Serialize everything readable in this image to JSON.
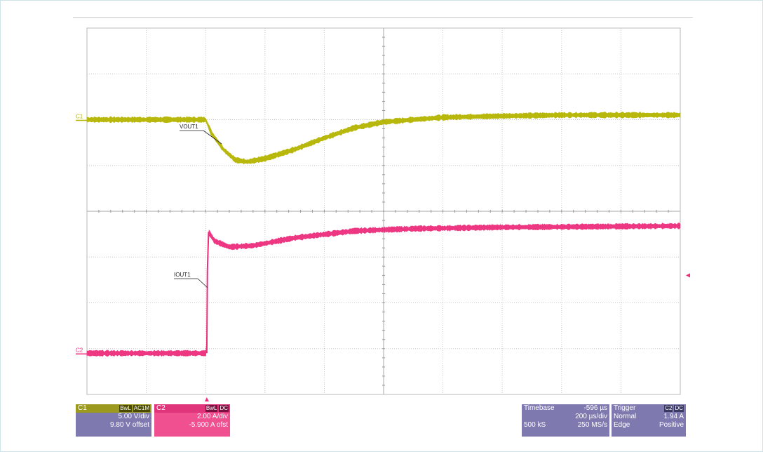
{
  "chart_data": {
    "type": "line",
    "title": "",
    "xlabel": "",
    "ylabel": "",
    "grid": true,
    "x_divisions": 10,
    "y_divisions": 8,
    "series": [
      {
        "name": "VOUT1",
        "channel": "C1",
        "color": "#b5b500",
        "points_div": [
          [
            0,
            6.0
          ],
          [
            2.0,
            6.0
          ],
          [
            2.1,
            5.7
          ],
          [
            2.3,
            5.35
          ],
          [
            2.5,
            5.12
          ],
          [
            2.7,
            5.08
          ],
          [
            3.0,
            5.15
          ],
          [
            3.5,
            5.35
          ],
          [
            4.0,
            5.6
          ],
          [
            4.5,
            5.82
          ],
          [
            5.0,
            5.95
          ],
          [
            6.0,
            6.05
          ],
          [
            7.0,
            6.08
          ],
          [
            8.0,
            6.1
          ],
          [
            10.0,
            6.1
          ]
        ]
      },
      {
        "name": "IOUT1",
        "channel": "C2",
        "color": "#ee2d7c",
        "points_div": [
          [
            0,
            0.9
          ],
          [
            2.02,
            0.9
          ],
          [
            2.03,
            2.7
          ],
          [
            2.05,
            3.55
          ],
          [
            2.15,
            3.35
          ],
          [
            2.4,
            3.22
          ],
          [
            2.8,
            3.25
          ],
          [
            3.5,
            3.42
          ],
          [
            4.5,
            3.57
          ],
          [
            5.5,
            3.62
          ],
          [
            7.0,
            3.65
          ],
          [
            10.0,
            3.68
          ]
        ]
      }
    ],
    "trace_labels": [
      "VOUT1",
      "IOUT1"
    ],
    "channel_markers": [
      "C1",
      "C2"
    ]
  },
  "panels": {
    "c1": {
      "name": "C1",
      "badge1": "BwL",
      "badge2": "AC1M",
      "vdiv": "5.00 V/div",
      "offset": "9.80 V offset"
    },
    "c2": {
      "name": "C2",
      "badge1": "BwL",
      "badge2": "DC",
      "adiv": "2.00 A/div",
      "offset": "-5.900 A ofst"
    },
    "timebase": {
      "label": "Timebase",
      "delay": "-596 µs",
      "tdiv": "200 µs/div",
      "samples": "500 kS",
      "rate": "250 MS/s"
    },
    "trigger": {
      "label": "Trigger",
      "badge1": "C2",
      "badge2": "DC",
      "mode": "Normal",
      "level": "1.94 A",
      "type": "Edge",
      "slope": "Positive"
    }
  },
  "colors": {
    "c1": "#b5b500",
    "c2": "#ee2d7c",
    "grid": "#c8c8c8"
  }
}
